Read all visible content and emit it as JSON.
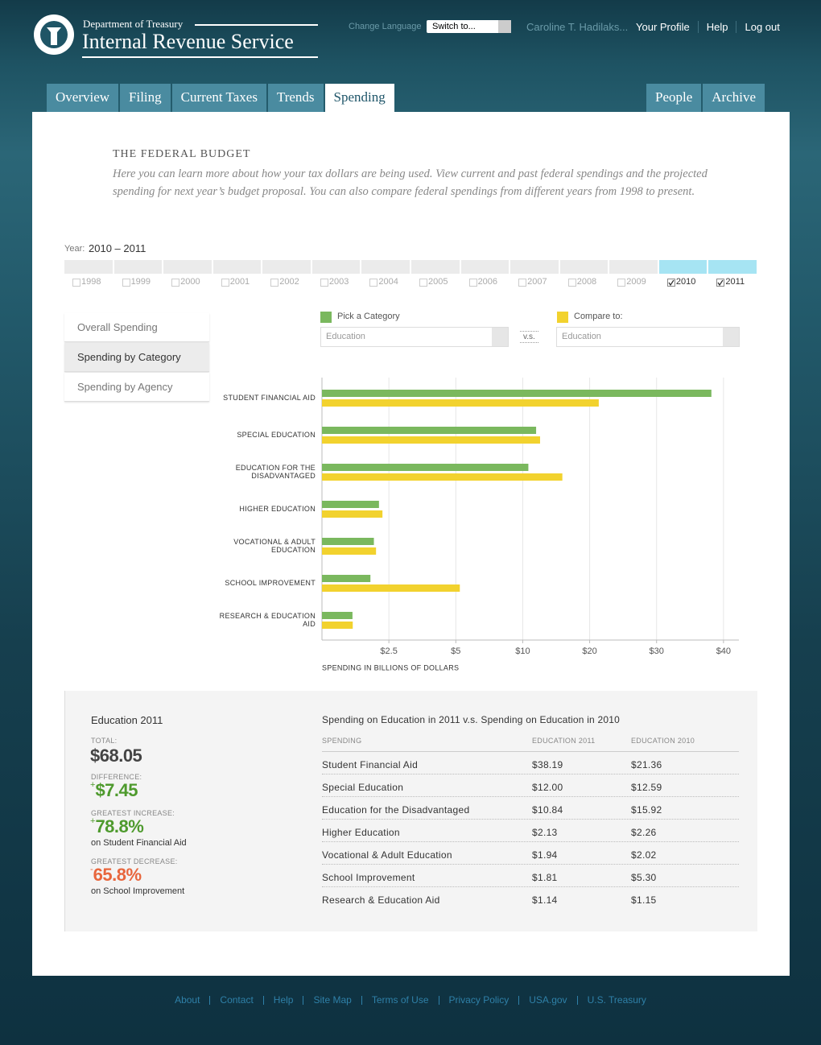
{
  "header": {
    "department": "Department of Treasury",
    "agency": "Internal Revenue Service",
    "language_label": "Change Language",
    "language_select": "Switch to...",
    "user": "Caroline T. Hadilaks...",
    "links": [
      "Your Profile",
      "Help",
      "Log out"
    ]
  },
  "tabs": {
    "left": [
      "Overview",
      "Filing",
      "Current Taxes",
      "Trends",
      "Spending"
    ],
    "right": [
      "People",
      "Archive"
    ],
    "active_index": 4
  },
  "intro": {
    "title": "THE FEDERAL BUDGET",
    "text": "Here you can learn more about how your tax dollars are being used. View current and past federal spendings and the projected spending for next year’s budget proposal. You can also compare federal spendings from different years from 1998 to present."
  },
  "years": {
    "label": "Year:",
    "range": "2010 – 2011",
    "options": [
      "1998",
      "1999",
      "2000",
      "2001",
      "2002",
      "2003",
      "2004",
      "2005",
      "2006",
      "2007",
      "2008",
      "2009",
      "2010",
      "2011"
    ],
    "selected": [
      false,
      false,
      false,
      false,
      false,
      false,
      false,
      false,
      false,
      false,
      false,
      false,
      true,
      true
    ]
  },
  "views": {
    "items": [
      "Overall Spending",
      "Spending by Category",
      "Spending by Agency"
    ],
    "active_index": 1
  },
  "controls": {
    "category_value": "Education",
    "vs": "v.s.",
    "compare_value": "Education"
  },
  "chart_data": {
    "type": "bar",
    "orientation": "horizontal",
    "categories": [
      "STUDENT FINANCIAL AID",
      "SPECIAL EDUCATION",
      "EDUCATION FOR THE DISADVANTAGED",
      "HIGHER EDUCATION",
      "VOCATIONAL & ADULT EDUCATION",
      "SCHOOL IMPROVEMENT",
      "RESEARCH & EDUCATION AID"
    ],
    "series": [
      {
        "name": "Pick a Category",
        "color": "#7ab85e",
        "values": [
          38.19,
          12.0,
          10.84,
          2.13,
          1.94,
          1.81,
          1.14
        ]
      },
      {
        "name": "Compare to:",
        "color": "#f2d22e",
        "values": [
          21.36,
          12.59,
          15.92,
          2.26,
          2.02,
          5.3,
          1.15
        ]
      }
    ],
    "x_label": "SPENDING IN BILLIONS OF DOLLARS",
    "xlim": [
      0,
      42.3
    ],
    "xticks": [
      {
        "value": 2.5,
        "label": "$2.5"
      },
      {
        "value": 5,
        "label": "$5"
      },
      {
        "value": 10,
        "label": "$10"
      },
      {
        "value": 20,
        "label": "$20"
      },
      {
        "value": 30,
        "label": "$30"
      },
      {
        "value": 40,
        "label": "$40"
      }
    ],
    "grid": true
  },
  "summary": {
    "title": "Education 2011",
    "total": {
      "label": "TOTAL:",
      "value": "$68.05"
    },
    "difference": {
      "label": "DIFFERENCE:",
      "sign": "+",
      "value": "$7.45"
    },
    "increase": {
      "label": "GREATEST INCREASE:",
      "sign": "+",
      "value": "78.8%",
      "note": "on Student Financial Aid"
    },
    "decrease": {
      "label": "GREATEST DECREASE:",
      "sign": "-",
      "value": "65.8%",
      "note": "on School Improvement"
    }
  },
  "table": {
    "title": "Spending on Education in 2011 v.s. Spending on Education in 2010",
    "headers": [
      "SPENDING",
      "EDUCATION 2011",
      "EDUCATION 2010"
    ],
    "rows": [
      [
        "Student Financial Aid",
        "$38.19",
        "$21.36"
      ],
      [
        "Special Education",
        "$12.00",
        "$12.59"
      ],
      [
        "Education for the Disadvantaged",
        "$10.84",
        "$15.92"
      ],
      [
        "Higher Education",
        "$2.13",
        "$2.26"
      ],
      [
        "Vocational & Adult Education",
        "$1.94",
        "$2.02"
      ],
      [
        "School Improvement",
        "$1.81",
        "$5.30"
      ],
      [
        "Research & Education Aid",
        "$1.14",
        "$1.15"
      ]
    ]
  },
  "footer": {
    "links": [
      "About",
      "Contact",
      "Help",
      "Site Map",
      "Terms of Use",
      "Privacy Policy",
      "USA.gov",
      "U.S. Treasury"
    ]
  }
}
